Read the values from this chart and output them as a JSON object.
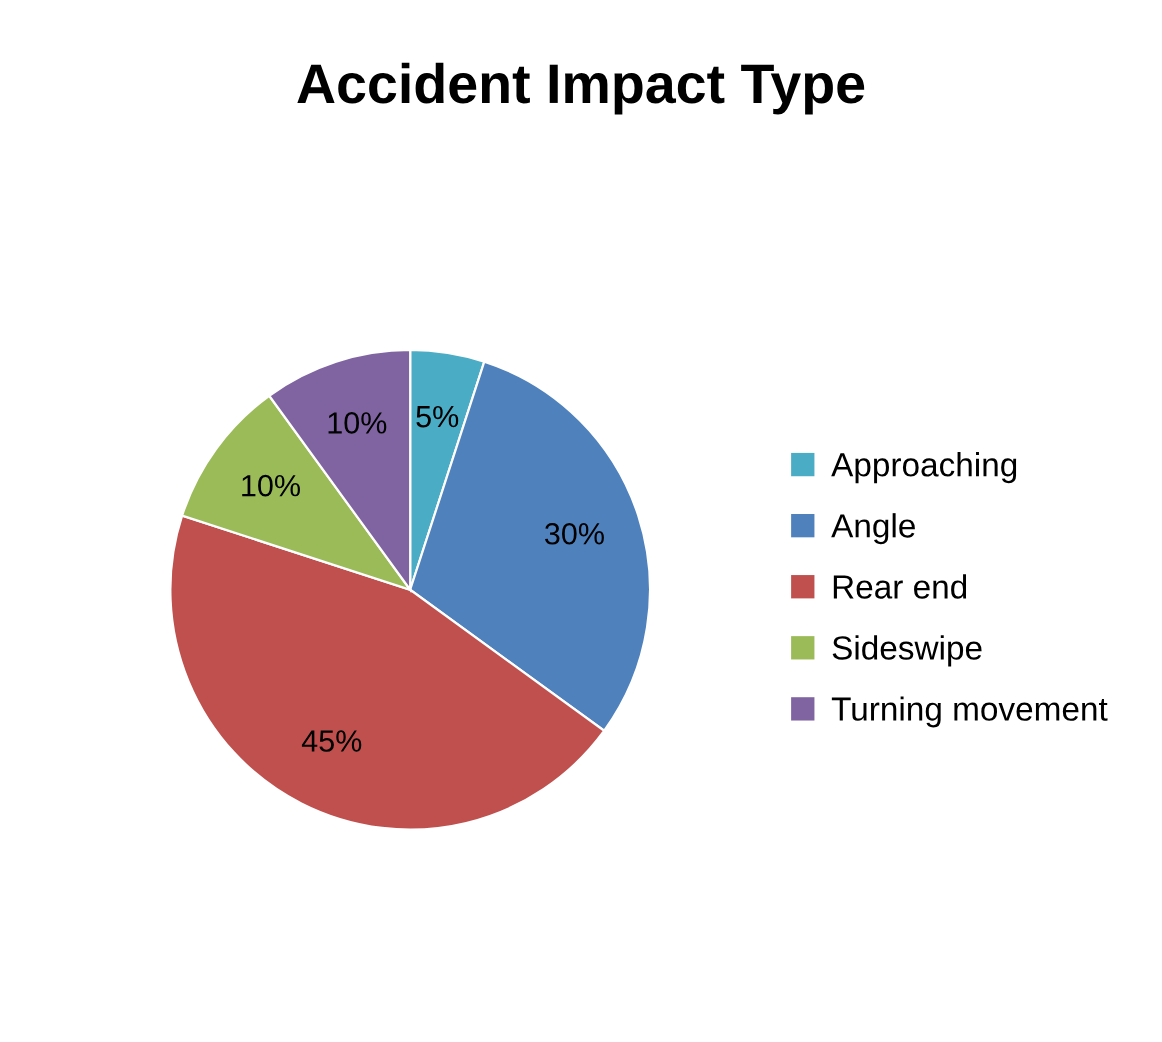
{
  "chart_data": {
    "type": "pie",
    "title": "Accident Impact Type",
    "categories": [
      "Approaching",
      "Angle",
      "Rear end",
      "Sideswipe",
      "Turning movement"
    ],
    "values": [
      5,
      30,
      45,
      10,
      10
    ],
    "value_labels": [
      "5%",
      "30%",
      "45%",
      "10%",
      "10%"
    ],
    "colors": [
      "#4bacc6",
      "#4f81bd",
      "#c0504d",
      "#9bbb59",
      "#8064a2"
    ],
    "legend": "right"
  }
}
